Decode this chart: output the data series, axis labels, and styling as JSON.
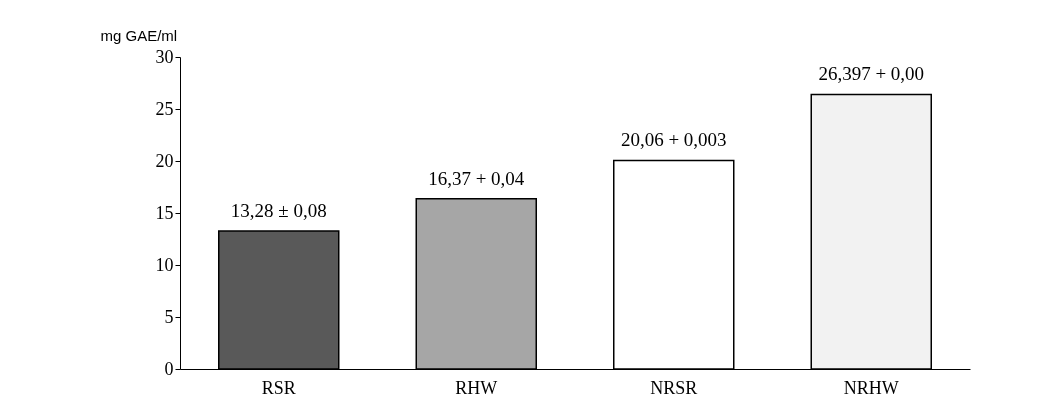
{
  "chart_data": {
    "type": "bar",
    "ylabel": "mg GAE/ml",
    "categories": [
      "RSR",
      "RHW",
      "NRSR",
      "NRHW"
    ],
    "values": [
      13.28,
      16.37,
      20.06,
      26.397
    ],
    "colors": [
      "#595959",
      "#a6a6a6",
      "#ffffff",
      "#f2f2f2"
    ],
    "value_labels": [
      "13,28 ± 0,08",
      "16,37 + 0,04",
      "20,06 + 0,003",
      "26,397 + 0,00"
    ],
    "ylim": [
      0,
      30
    ],
    "yticks": [
      0,
      5,
      10,
      15,
      20,
      25,
      30
    ],
    "grid": false
  }
}
